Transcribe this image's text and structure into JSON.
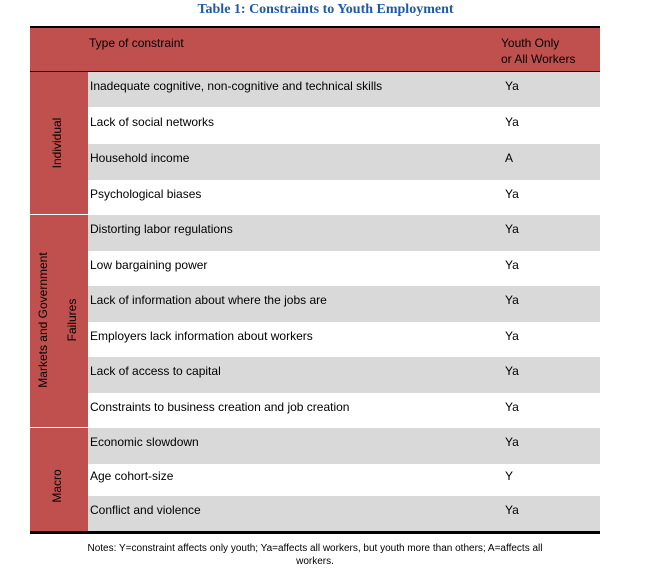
{
  "title": "Table 1: Constraints to Youth Employment",
  "header": {
    "col1": "Type of constraint",
    "col2_line1": "Youth Only",
    "col2_line2": "or All Workers"
  },
  "groups": {
    "outer": "Markets and Government",
    "failures": "Failures",
    "individual": "Individual",
    "macro": "Macro"
  },
  "rows": [
    {
      "constraint": "Inadequate cognitive, non-cognitive and technical skills",
      "scope": "Ya"
    },
    {
      "constraint": "Lack of social networks",
      "scope": "Ya"
    },
    {
      "constraint": "Household income",
      "scope": "A"
    },
    {
      "constraint": "Psychological biases",
      "scope": "Ya"
    },
    {
      "constraint": "Distorting labor regulations",
      "scope": "Ya"
    },
    {
      "constraint": "Low bargaining power",
      "scope": "Ya"
    },
    {
      "constraint": "Lack of information about where the jobs are",
      "scope": "Ya"
    },
    {
      "constraint": "Employers lack information about workers",
      "scope": "Ya"
    },
    {
      "constraint": "Lack of access to capital",
      "scope": "Ya"
    },
    {
      "constraint": "Constraints to business creation and job creation",
      "scope": "Ya"
    },
    {
      "constraint": "Economic slowdown",
      "scope": "Ya"
    },
    {
      "constraint": "Age cohort-size",
      "scope": "Y"
    },
    {
      "constraint": "Conflict and violence",
      "scope": "Ya"
    }
  ],
  "notes_line1": "Notes: Y=constraint affects only youth; Ya=affects all workers, but youth more than others; A=affects all",
  "notes_line2": "workers.",
  "colors": {
    "header_red": "#c0504d",
    "shade_gray": "#d9d9d9",
    "title_blue": "#1f5aa6"
  }
}
